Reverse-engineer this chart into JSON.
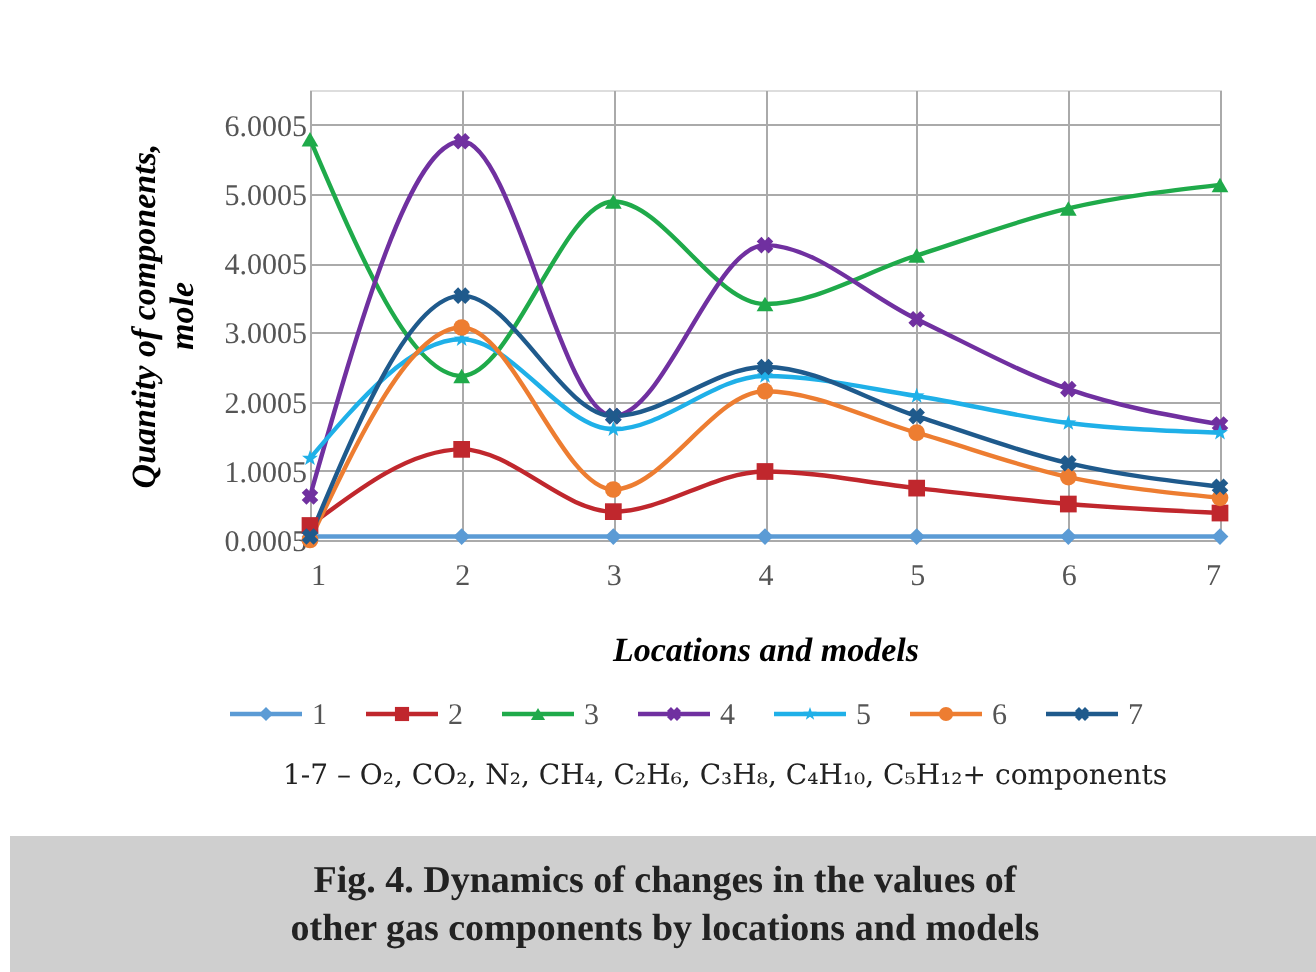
{
  "chart_data": {
    "type": "line",
    "xlabel": "Locations and models",
    "ylabel": "Quantity of components, mole",
    "x": [
      1,
      2,
      3,
      4,
      5,
      6,
      7
    ],
    "xlim": [
      1,
      7
    ],
    "xticks": [
      1,
      2,
      3,
      4,
      5,
      6,
      7
    ],
    "ylim": [
      0.0005,
      6.5005
    ],
    "yticks": [
      0.0005,
      1.0005,
      2.0005,
      3.0005,
      4.0005,
      5.0005,
      6.0005
    ],
    "grid": true,
    "legend": "bottom",
    "line_style": "solid",
    "series": [
      {
        "name": "1",
        "color": "#5b9bd5",
        "marker": "diamond",
        "values": [
          0.05,
          0.05,
          0.05,
          0.05,
          0.05,
          0.05,
          0.05
        ]
      },
      {
        "name": "2",
        "color": "#c0272d",
        "marker": "square",
        "values": [
          0.21,
          1.31,
          0.41,
          0.99,
          0.75,
          0.52,
          0.39
        ]
      },
      {
        "name": "3",
        "color": "#1faa4a",
        "marker": "triangle",
        "values": [
          5.79,
          2.37,
          4.89,
          3.41,
          4.11,
          4.79,
          5.13
        ]
      },
      {
        "name": "4",
        "color": "#7030a0",
        "marker": "cross",
        "values": [
          0.63,
          5.76,
          1.79,
          4.26,
          3.19,
          2.18,
          1.67
        ]
      },
      {
        "name": "5",
        "color": "#1fb0e8",
        "marker": "star",
        "values": [
          1.18,
          2.9,
          1.6,
          2.37,
          2.08,
          1.69,
          1.55
        ]
      },
      {
        "name": "6",
        "color": "#ed7d31",
        "marker": "circle",
        "values": [
          0.0005,
          3.07,
          0.73,
          2.15,
          1.55,
          0.91,
          0.61
        ]
      },
      {
        "name": "7",
        "color": "#1f5a8c",
        "marker": "cross",
        "values": [
          0.05,
          3.53,
          1.79,
          2.5,
          1.79,
          1.11,
          0.77
        ]
      }
    ],
    "annotations": [
      "1-7 – O₂, CO₂, N₂, CH₄, C₂H₆, C₃H₈, C₄H₁₀, C₅H₁₂+ components",
      "Fig. 4. Dynamics of changes in the values of other gas components by locations and models"
    ]
  }
}
